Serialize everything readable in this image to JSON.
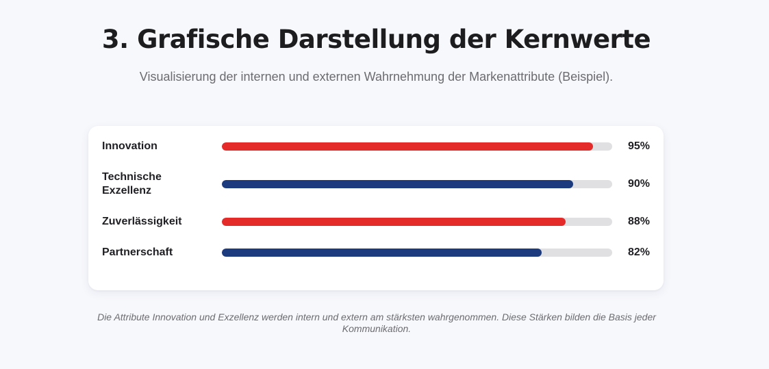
{
  "header": {
    "title": "3. Grafische Darstellung der Kernwerte",
    "subtitle": "Visualisierung der internen und externen Wahrnehmung der Markenattribute (Beispiel)."
  },
  "chart_data": {
    "type": "bar",
    "orientation": "horizontal",
    "categories": [
      "Innovation",
      "Technische Exzellenz",
      "Zuverlässigkeit",
      "Partnerschaft"
    ],
    "values": [
      95,
      90,
      88,
      82
    ],
    "value_labels": [
      "95%",
      "90%",
      "88%",
      "82%"
    ],
    "xlim": [
      0,
      100
    ],
    "unit": "%",
    "bar_colors": [
      "#e52a2a",
      "#1c3a7e",
      "#e52a2a",
      "#1c3a7e"
    ],
    "track_color": "#e0e0e2",
    "grid": false
  },
  "footnote": "Die Attribute Innovation und Exzellenz werden intern und extern am stärksten wahrgenommen. Diese Stärken bilden die Basis jeder Kommunikation."
}
